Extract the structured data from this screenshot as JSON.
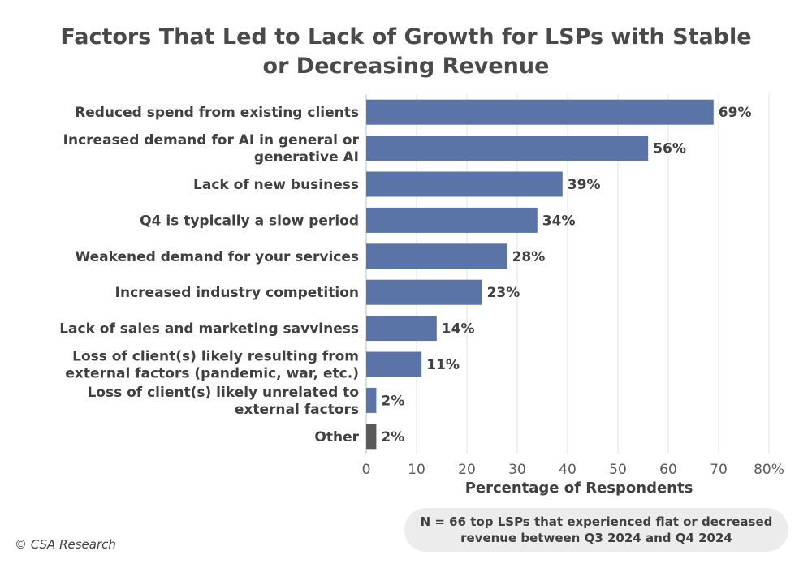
{
  "chart_data": {
    "type": "bar",
    "orientation": "horizontal",
    "title": "Factors That Led to Lack of Growth for LSPs with Stable or Decreasing Revenue",
    "title_lines": [
      "Factors That Led to Lack of Growth for LSPs with Stable",
      "or Decreasing Revenue"
    ],
    "categories": [
      [
        "Reduced spend from existing clients"
      ],
      [
        "Increased demand for AI in general or",
        "generative AI"
      ],
      [
        "Lack of new business"
      ],
      [
        "Q4 is typically a slow period"
      ],
      [
        "Weakened demand for your services"
      ],
      [
        "Increased industry competition"
      ],
      [
        "Lack of sales and marketing savviness"
      ],
      [
        "Loss of client(s) likely resulting from",
        "external factors (pandemic, war, etc.)"
      ],
      [
        "Loss of client(s) likely unrelated to",
        "external factors"
      ],
      [
        "Other"
      ]
    ],
    "values": [
      69,
      56,
      39,
      34,
      28,
      23,
      14,
      11,
      2,
      2
    ],
    "value_labels": [
      "69%",
      "56%",
      "39%",
      "34%",
      "28%",
      "23%",
      "14%",
      "11%",
      "2%",
      "2%"
    ],
    "bar_colors": [
      "#5b74a8",
      "#5b74a8",
      "#5b74a8",
      "#5b74a8",
      "#5b74a8",
      "#5b74a8",
      "#5b74a8",
      "#5b74a8",
      "#5b74a8",
      "#5a5a5a"
    ],
    "xlabel": "Percentage of Respondents",
    "xlim": [
      0,
      80
    ],
    "x_ticks": [
      0,
      10,
      20,
      30,
      40,
      50,
      60,
      70,
      80
    ],
    "x_tick_labels": [
      "0",
      "10",
      "20",
      "30",
      "40",
      "50",
      "60",
      "70",
      "80%"
    ],
    "grid": "vertical"
  },
  "note_lines": [
    "N = 66 top LSPs that experienced flat or decreased",
    "revenue between Q3 2024 and Q4 2024"
  ],
  "credit": "© CSA Research"
}
